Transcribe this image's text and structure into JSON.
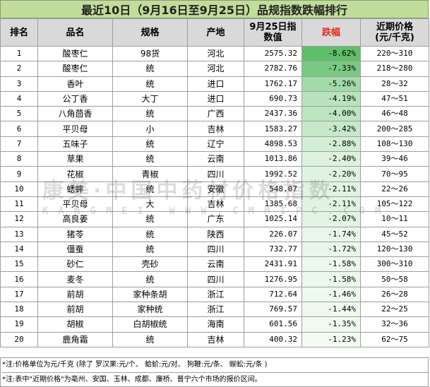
{
  "title": "最近10日（9月16日至9月25日）品规指数跌幅排行",
  "headers": {
    "rank": "排名",
    "name": "品名",
    "spec": "规格",
    "origin": "产地",
    "index_line1": "9月25日指",
    "index_line2": "数值",
    "drop": "跌幅",
    "price_line1": "近期价格",
    "price_line2": "(元/千克)"
  },
  "rows": [
    {
      "rank": "1",
      "name": "酸枣仁",
      "spec": "98货",
      "origin": "河北",
      "index": "2575.32",
      "drop": "-8.62%",
      "drop_value": -8.62,
      "price": "220～310"
    },
    {
      "rank": "2",
      "name": "酸枣仁",
      "spec": "统",
      "origin": "河北",
      "index": "2782.76",
      "drop": "-7.33%",
      "drop_value": -7.33,
      "price": "218～280"
    },
    {
      "rank": "3",
      "name": "香叶",
      "spec": "统",
      "origin": "进口",
      "index": "1762.17",
      "drop": "-5.26%",
      "drop_value": -5.26,
      "price": "28～32"
    },
    {
      "rank": "4",
      "name": "公丁香",
      "spec": "大丁",
      "origin": "进口",
      "index": "690.73",
      "drop": "-4.19%",
      "drop_value": -4.19,
      "price": "47～51"
    },
    {
      "rank": "5",
      "name": "八角茴香",
      "spec": "统",
      "origin": "广西",
      "index": "2437.36",
      "drop": "-4.00%",
      "drop_value": -4.0,
      "price": "46～48"
    },
    {
      "rank": "6",
      "name": "平贝母",
      "spec": "小",
      "origin": "吉林",
      "index": "1583.27",
      "drop": "-3.42%",
      "drop_value": -3.42,
      "price": "200～285"
    },
    {
      "rank": "7",
      "name": "五味子",
      "spec": "统",
      "origin": "辽宁",
      "index": "4898.53",
      "drop": "-2.88%",
      "drop_value": -2.88,
      "price": "108～130"
    },
    {
      "rank": "8",
      "name": "草果",
      "spec": "统",
      "origin": "云南",
      "index": "1013.86",
      "drop": "-2.40%",
      "drop_value": -2.4,
      "price": "39～46"
    },
    {
      "rank": "9",
      "name": "花椒",
      "spec": "青椒",
      "origin": "四川",
      "index": "1992.52",
      "drop": "-2.20%",
      "drop_value": -2.2,
      "price": "70～95"
    },
    {
      "rank": "10",
      "name": "蟋蟀",
      "spec": "统",
      "origin": "安徽",
      "index": "548.07",
      "drop": "-2.11%",
      "drop_value": -2.11,
      "price": "22～26"
    },
    {
      "rank": "11",
      "name": "平贝母",
      "spec": "大",
      "origin": "吉林",
      "index": "1385.68",
      "drop": "-2.11%",
      "drop_value": -2.11,
      "price": "105～122"
    },
    {
      "rank": "12",
      "name": "高良姜",
      "spec": "统",
      "origin": "广东",
      "index": "1025.14",
      "drop": "-2.07%",
      "drop_value": -2.07,
      "price": "10～11"
    },
    {
      "rank": "13",
      "name": "猪苓",
      "spec": "统",
      "origin": "陕西",
      "index": "226.07",
      "drop": "-1.74%",
      "drop_value": -1.74,
      "price": "45～52"
    },
    {
      "rank": "14",
      "name": "僵蚕",
      "spec": "统",
      "origin": "四川",
      "index": "732.77",
      "drop": "-1.72%",
      "drop_value": -1.72,
      "price": "120～130"
    },
    {
      "rank": "15",
      "name": "砂仁",
      "spec": "壳砂",
      "origin": "云南",
      "index": "2431.91",
      "drop": "-1.58%",
      "drop_value": -1.58,
      "price": "300～310"
    },
    {
      "rank": "16",
      "name": "麦冬",
      "spec": "统",
      "origin": "四川",
      "index": "1276.95",
      "drop": "-1.58%",
      "drop_value": -1.58,
      "price": "50～58"
    },
    {
      "rank": "17",
      "name": "前胡",
      "spec": "家种条胡",
      "origin": "浙江",
      "index": "712.64",
      "drop": "-1.46%",
      "drop_value": -1.46,
      "price": "26～28"
    },
    {
      "rank": "18",
      "name": "前胡",
      "spec": "家种统",
      "origin": "浙江",
      "index": "769.57",
      "drop": "-1.44%",
      "drop_value": -1.44,
      "price": "22～25"
    },
    {
      "rank": "19",
      "name": "胡椒",
      "spec": "白胡椒统",
      "origin": "海南",
      "index": "601.56",
      "drop": "-1.35%",
      "drop_value": -1.35,
      "price": "32～36"
    },
    {
      "rank": "20",
      "name": "鹿角霜",
      "spec": "统",
      "origin": "吉林",
      "index": "400.32",
      "drop": "-1.23%",
      "drop_value": -1.23,
      "price": "62～75"
    }
  ],
  "notes": [
    "*注:价格单位为元/千克  (除了  罗汉果:元/个、  蛤蚧:元/对、  狗鞭:元/条、  蜈蚣:元/条  )",
    "*注:表中\"近期价格\"为亳州、安国、玉林、成都、廉桥、普宁六个市场的报价区间。"
  ],
  "watermark": {
    "line1": "康美·中国中药材价格指数",
    "line2": "KANGMEI WWW.CMMIPC.COM"
  },
  "colors": {
    "title_bg": "#c2dc9a",
    "header_bg": "#d9d9d9",
    "drop_header_text": "#e0301e",
    "gradient_strong": "#5fbf6a",
    "gradient_weak": "#f3fbf3"
  }
}
